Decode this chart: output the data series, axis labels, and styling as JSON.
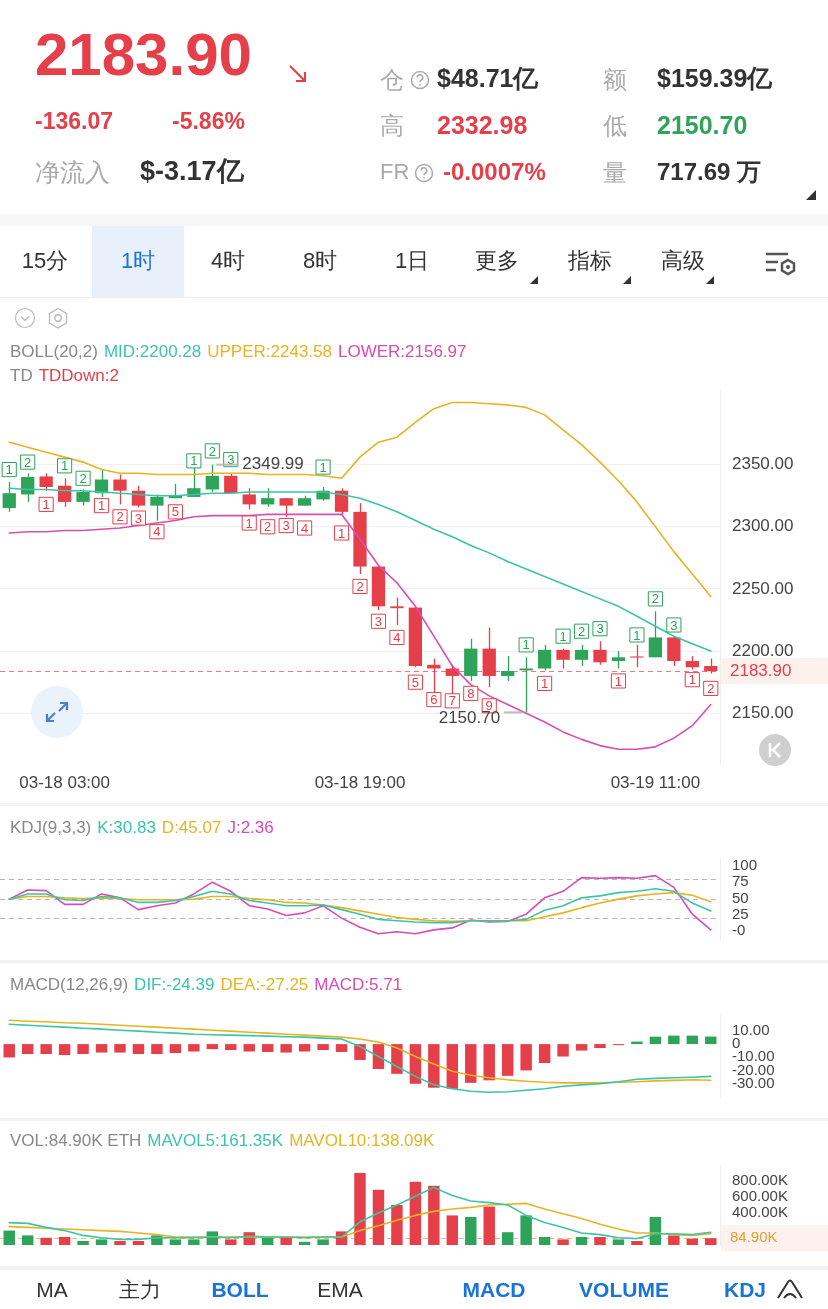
{
  "chart_data": [
    {
      "type": "other",
      "annotations": [
        "2183.90",
        "-136.07",
        "-5.86%",
        "净流入",
        "$-3.17亿",
        "仓",
        "$48.71亿",
        "额",
        "$159.39亿",
        "高",
        "2332.98",
        "低",
        "2150.70",
        "FR",
        "-0.0007%",
        "量",
        "717.69 万"
      ]
    },
    {
      "type": "other",
      "annotations": [
        "15分",
        "1时",
        "4时",
        "8时",
        "1日",
        "更多",
        "指标",
        "高级"
      ]
    },
    {
      "type": "candlestick",
      "legend": "top",
      "legend_title": "BOLL(20,2)",
      "grid": "y",
      "categories": [
        null,
        null,
        null,
        "03-18 03:00",
        null,
        null,
        null,
        null,
        null,
        null,
        null,
        null,
        null,
        null,
        null,
        null,
        null,
        null,
        null,
        "03-18 19:00",
        null,
        null,
        null,
        null,
        null,
        null,
        null,
        null,
        null,
        null,
        null,
        null,
        null,
        null,
        null,
        "03-19 11:00",
        null,
        null,
        null
      ],
      "ohlc": [
        [
          2315,
          2336,
          2312,
          2327
        ],
        [
          2326,
          2343,
          2320,
          2340
        ],
        [
          2340.5,
          2343,
          2329,
          2332
        ],
        [
          2333,
          2339,
          2316,
          2320
        ],
        [
          2320,
          2330,
          2317,
          2328
        ],
        [
          2327,
          2346,
          2324,
          2338
        ],
        [
          2338,
          2342,
          2318,
          2329
        ],
        [
          2329,
          2333,
          2315.5,
          2317
        ],
        [
          2317,
          2326,
          2305,
          2324
        ],
        [
          2323,
          2334.5,
          2323,
          2325
        ],
        [
          2324,
          2348,
          2324,
          2331
        ],
        [
          2330,
          2349.99,
          2328,
          2341
        ],
        [
          2341,
          2343,
          2327,
          2327
        ],
        [
          2326,
          2331,
          2314,
          2318
        ],
        [
          2318,
          2331,
          2316,
          2323
        ],
        [
          2323,
          2323,
          2308,
          2317
        ],
        [
          2317,
          2325,
          2317,
          2323
        ],
        [
          2322,
          2332,
          2321,
          2329
        ],
        [
          2329,
          2331,
          2309.5,
          2312
        ],
        [
          2312,
          2319,
          2262,
          2268
        ],
        [
          2268,
          2268,
          2233,
          2236
        ],
        [
          2236,
          2243,
          2221,
          2234.5
        ],
        [
          2235,
          2236,
          2187,
          2188
        ],
        [
          2189,
          2194,
          2159.5,
          2186
        ],
        [
          2186,
          2189,
          2157,
          2180
        ],
        [
          2180,
          2210,
          2176,
          2202
        ],
        [
          2202,
          2219,
          2171,
          2180
        ],
        [
          2180,
          2196,
          2176,
          2184
        ],
        [
          2184.5,
          2195,
          2150.7,
          2186
        ],
        [
          2186,
          2205,
          2184.5,
          2201
        ],
        [
          2201,
          2202,
          2186,
          2193
        ],
        [
          2193,
          2205,
          2188,
          2201
        ],
        [
          2201,
          2208,
          2189,
          2191
        ],
        [
          2192,
          2200,
          2186,
          2195
        ],
        [
          2195.7,
          2205,
          2187,
          2194.8
        ],
        [
          2195,
          2232,
          2195,
          2211
        ],
        [
          2211,
          2212,
          2188,
          2192
        ],
        [
          2192,
          2196,
          2185,
          2187
        ],
        [
          2188,
          2194,
          2182,
          2183.9
        ]
      ],
      "colors": [
        "#2ea35a",
        "#2ea35a",
        "#e5404a",
        "#e5404a",
        "#2ea35a",
        "#2ea35a",
        "#e5404a",
        "#e5404a",
        "#2ea35a",
        "#2ea35a",
        "#2ea35a",
        "#2ea35a",
        "#e5404a",
        "#e5404a",
        "#2ea35a",
        "#e5404a",
        "#2ea35a",
        "#2ea35a",
        "#e5404a",
        "#e5404a",
        "#e5404a",
        "#e5404a",
        "#e5404a",
        "#e5404a",
        "#e5404a",
        "#2ea35a",
        "#e5404a",
        "#2ea35a",
        "#2ea35a",
        "#2ea35a",
        "#e5404a",
        "#2ea35a",
        "#e5404a",
        "#2ea35a",
        "#e5404a",
        "#2ea35a",
        "#e5404a",
        "#e5404a",
        "#e5404a"
      ],
      "series": [
        {
          "name": "MID:2200.28",
          "type": "line",
          "color": "#3cc4a8",
          "values": [
            2331,
            2330,
            2330,
            2329,
            2329,
            2328,
            2327,
            2326,
            2325,
            2325,
            2326,
            2327,
            2327,
            2328,
            2328,
            2328,
            2328,
            2328,
            2326,
            2323,
            2318,
            2312,
            2305,
            2298,
            2292,
            2285,
            2279,
            2272,
            2266,
            2260,
            2254,
            2248,
            2242,
            2236,
            2228,
            2220,
            2212,
            2206,
            2200
          ]
        },
        {
          "name": "UPPER:2243.58",
          "type": "line",
          "color": "#e6b422",
          "values": [
            2368,
            2364,
            2360,
            2356,
            2352,
            2346,
            2343,
            2343,
            2342,
            2342,
            2342,
            2343,
            2343,
            2343,
            2342,
            2342,
            2342,
            2341,
            2339,
            2356,
            2368,
            2372,
            2384,
            2395,
            2400,
            2400,
            2399,
            2398,
            2396,
            2390,
            2378,
            2366,
            2352,
            2337,
            2320,
            2300,
            2280,
            2262,
            2244
          ]
        },
        {
          "name": "LOWER:2156.97",
          "type": "line",
          "color": "#d94cb5",
          "values": [
            2295,
            2296,
            2296,
            2297,
            2297,
            2298,
            2299,
            2301,
            2303,
            2305,
            2308,
            2309,
            2309,
            2309,
            2310,
            2310,
            2310,
            2310,
            2310,
            2290,
            2269,
            2255,
            2236,
            2212,
            2188,
            2173,
            2164,
            2157,
            2150,
            2143,
            2135,
            2129,
            2124,
            2121,
            2121,
            2123,
            2130,
            2140,
            2157
          ]
        },
        {
          "type": "scatter",
          "marker": "square",
          "color": "#2ea35a",
          "values": [
            2346,
            2352,
            null,
            2349,
            2339,
            null,
            null,
            null,
            null,
            null,
            2353,
            2361,
            2354,
            null,
            null,
            null,
            null,
            2348,
            null,
            null,
            null,
            null,
            null,
            null,
            null,
            null,
            null,
            null,
            2205,
            null,
            2212,
            2216,
            2218,
            null,
            2213,
            2242,
            2221,
            null,
            null
          ]
        },
        {
          "type": "scatter",
          "marker": "square",
          "color": "#e5404a",
          "values": [
            null,
            null,
            2318,
            null,
            null,
            2317,
            2308,
            2307,
            2296,
            2312,
            null,
            null,
            null,
            2303,
            2300,
            2301,
            2299,
            null,
            2295,
            2252,
            2224,
            2211,
            2175,
            2161,
            2160,
            2166,
            2156,
            null,
            null,
            2174,
            null,
            null,
            null,
            2176,
            null,
            null,
            null,
            2177,
            2170
          ]
        }
      ],
      "annotations": [
        "TD",
        "TDDown:2",
        "2349.99",
        "2150.70",
        {
          "text": "1",
          "y": 2346
        },
        {
          "text": "2",
          "y": 2352
        },
        {
          "text": "1",
          "y": 2349
        },
        {
          "text": "2",
          "y": 2339
        },
        {
          "text": "1",
          "y": 2353
        },
        {
          "text": "2",
          "y": 2361
        },
        {
          "text": "3",
          "y": 2354
        },
        {
          "text": "1",
          "y": 2348
        },
        {
          "text": "1",
          "y": 2205
        },
        {
          "text": "1",
          "y": 2212
        },
        {
          "text": "2",
          "y": 2216
        },
        {
          "text": "3",
          "y": 2218
        },
        {
          "text": "1",
          "y": 2213
        },
        {
          "text": "2",
          "y": 2242
        },
        {
          "text": "3",
          "y": 2221
        },
        {
          "text": "1",
          "y": 2318
        },
        {
          "text": "1",
          "y": 2317
        },
        {
          "text": "2",
          "y": 2308
        },
        {
          "text": "3",
          "y": 2307
        },
        {
          "text": "4",
          "y": 2296
        },
        {
          "text": "5",
          "y": 2312
        },
        {
          "text": "1",
          "y": 2303
        },
        {
          "text": "2",
          "y": 2300
        },
        {
          "text": "3",
          "y": 2301
        },
        {
          "text": "4",
          "y": 2299
        },
        {
          "text": "1",
          "y": 2295
        },
        {
          "text": "2",
          "y": 2252
        },
        {
          "text": "3",
          "y": 2224
        },
        {
          "text": "4",
          "y": 2211
        },
        {
          "text": "5",
          "y": 2175
        },
        {
          "text": "6",
          "y": 2161
        },
        {
          "text": "7",
          "y": 2160
        },
        {
          "text": "8",
          "y": 2166
        },
        {
          "text": "9",
          "y": 2156
        },
        {
          "text": "1",
          "y": 2174
        },
        {
          "text": "1",
          "y": 2176
        },
        {
          "text": "1",
          "y": 2177
        },
        {
          "text": "2",
          "y": 2170
        }
      ],
      "ref_lines": [
        {
          "axis": "y",
          "value": 2183.9,
          "label": "2183.90",
          "color": "#e5404a",
          "line_style": "dashed"
        }
      ],
      "ylim": [
        2110,
        2410
      ],
      "yticks": [
        {
          "value": 2150,
          "label": "2150.00"
        },
        {
          "value": 2200,
          "label": "2200.00"
        },
        {
          "value": 2250,
          "label": "2250.00"
        },
        {
          "value": 2300,
          "label": "2300.00"
        },
        {
          "value": 2350,
          "label": "2350.00"
        }
      ]
    },
    {
      "type": "line",
      "legend": "top",
      "legend_title": "KDJ(9,3,3)",
      "tick_labels": "y",
      "categories": [
        null,
        null,
        null,
        null,
        null,
        null,
        null,
        null,
        null,
        null,
        null,
        null,
        null,
        null,
        null,
        null,
        null,
        null,
        null,
        null,
        null,
        null,
        null,
        null,
        null,
        null,
        null,
        null,
        null,
        null,
        null,
        null,
        null,
        null,
        null,
        null,
        null,
        null,
        null
      ],
      "series": [
        {
          "name": "K:30.83",
          "color": "#3cc4a8",
          "values": [
            49,
            57,
            57,
            48,
            47,
            53,
            51,
            44,
            44,
            47,
            53,
            61,
            57,
            47,
            43,
            39,
            39,
            40,
            33,
            26,
            18,
            16,
            14,
            13,
            13,
            16,
            16,
            16,
            18,
            32,
            39,
            51,
            54,
            59,
            61,
            65,
            61,
            43,
            31
          ]
        },
        {
          "name": "D:45.07",
          "color": "#e6b422",
          "values": [
            49,
            53,
            53,
            51,
            50,
            51,
            50,
            48,
            48,
            48,
            49,
            53,
            53,
            50,
            48,
            44,
            43,
            40,
            36,
            31,
            26,
            21,
            18,
            16,
            15,
            16,
            16,
            16,
            16,
            22,
            28,
            36,
            43,
            49,
            54,
            57,
            59,
            55,
            45
          ]
        },
        {
          "name": "J:2.36",
          "color": "#d94cb5",
          "values": [
            49,
            63,
            62,
            41,
            41,
            57,
            51,
            33,
            39,
            43,
            57,
            75,
            61,
            39,
            34,
            24,
            28,
            39,
            20,
            6,
            -4,
            -1,
            -4,
            2,
            5,
            17,
            14,
            15,
            26,
            51,
            61,
            82,
            81,
            82,
            81,
            85,
            67,
            26,
            2
          ]
        }
      ],
      "ref_lines": [
        {
          "axis": "y",
          "value": 80,
          "color": "#999999",
          "line_style": "dashed"
        },
        {
          "axis": "y",
          "value": 50,
          "color": "#999999",
          "line_style": "dashed"
        },
        {
          "axis": "y",
          "value": 20,
          "color": "#999999",
          "line_style": "dashed"
        }
      ],
      "ylim": [
        -12,
        112
      ],
      "yticks": [
        100,
        75,
        50,
        25,
        {
          "value": 0,
          "label": "-0"
        }
      ]
    },
    {
      "type": "bar",
      "legend": "top",
      "legend_title": "MACD(12,26,9)",
      "tick_labels": "y",
      "categories": [
        null,
        null,
        null,
        null,
        null,
        null,
        null,
        null,
        null,
        null,
        null,
        null,
        null,
        null,
        null,
        null,
        null,
        null,
        null,
        null,
        null,
        null,
        null,
        null,
        null,
        null,
        null,
        null,
        null,
        null,
        null,
        null,
        null,
        null,
        null,
        null,
        null,
        null,
        null
      ],
      "values": [
        -10.1,
        -7.5,
        -7.5,
        -8.3,
        -7.5,
        -6.4,
        -6.4,
        -7.5,
        -7.5,
        -6.8,
        -5.6,
        -3.8,
        -4.5,
        -5.6,
        -6,
        -6.4,
        -5.6,
        -4.5,
        -6,
        -12,
        -18.8,
        -22.5,
        -30,
        -33,
        -33.8,
        -29.3,
        -27.4,
        -24,
        -19.9,
        -14.3,
        -9.4,
        -4.9,
        -3,
        -0.8,
        1.9,
        5.6,
        6.4,
        6.4,
        5.7
      ],
      "colors": [
        "#e5404a",
        "#e5404a",
        "#e5404a",
        "#e5404a",
        "#e5404a",
        "#e5404a",
        "#e5404a",
        "#e5404a",
        "#e5404a",
        "#e5404a",
        "#e5404a",
        "#e5404a",
        "#e5404a",
        "#e5404a",
        "#e5404a",
        "#e5404a",
        "#e5404a",
        "#e5404a",
        "#e5404a",
        "#e5404a",
        "#e5404a",
        "#e5404a",
        "#e5404a",
        "#e5404a",
        "#e5404a",
        "#e5404a",
        "#e5404a",
        "#e5404a",
        "#e5404a",
        "#e5404a",
        "#e5404a",
        "#e5404a",
        "#e5404a",
        "#e5404a",
        "#2ea35a",
        "#2ea35a",
        "#2ea35a",
        "#2ea35a",
        "#2ea35a"
      ],
      "series": [
        {
          "name": "DIF:-24.39",
          "type": "line",
          "color": "#3cc4a8",
          "values": [
            15,
            14.3,
            13.5,
            12.8,
            12,
            11.3,
            10.5,
            9.8,
            9,
            8.3,
            7.5,
            7.1,
            6.8,
            6.4,
            6,
            5.6,
            5.3,
            4.5,
            3.8,
            -1.9,
            -9.4,
            -16.9,
            -24.4,
            -30.8,
            -33.8,
            -35.6,
            -36.4,
            -36,
            -34.9,
            -33.8,
            -31.9,
            -30.8,
            -30,
            -28.5,
            -26.6,
            -25.9,
            -25.5,
            -25.1,
            -24.4
          ]
        },
        {
          "name": "DEA:-27.25",
          "type": "line",
          "color": "#e6b422",
          "values": [
            18,
            17.3,
            16.9,
            16.1,
            15.8,
            15,
            14.3,
            13.5,
            12.8,
            12,
            11.3,
            10.5,
            9.8,
            9,
            8.3,
            7.5,
            6.8,
            6,
            5.3,
            3.8,
            1.5,
            -3,
            -9.4,
            -15,
            -20.6,
            -23.6,
            -25.5,
            -27,
            -28.1,
            -28.9,
            -29.3,
            -29.3,
            -29.3,
            -28.9,
            -28.5,
            -27.8,
            -27.4,
            -27,
            -27.3
          ]
        }
      ],
      "annotations": [
        "MACD:5.71"
      ],
      "ylim": [
        -40,
        22
      ],
      "yticks": [
        {
          "value": 10,
          "label": "10.00"
        },
        0,
        {
          "value": -10,
          "label": "-10.00"
        },
        {
          "value": -20,
          "label": "-20.00"
        },
        {
          "value": -30,
          "label": "-30.00"
        }
      ]
    },
    {
      "type": "bar",
      "legend": "top",
      "legend_title": "VOL:84.90K ETH",
      "tick_labels": "y",
      "categories": [
        null,
        null,
        null,
        null,
        null,
        null,
        null,
        null,
        null,
        null,
        null,
        null,
        null,
        null,
        null,
        null,
        null,
        null,
        null,
        null,
        null,
        null,
        null,
        null,
        null,
        null,
        null,
        null,
        null,
        null,
        null,
        null,
        null,
        null,
        null,
        null,
        null,
        null,
        null
      ],
      "values": [
        180000,
        120000,
        90000,
        100000,
        50000,
        70000,
        50000,
        50000,
        120000,
        70000,
        70000,
        170000,
        70000,
        160000,
        90000,
        100000,
        40000,
        70000,
        170000,
        900000,
        690000,
        500000,
        790000,
        740000,
        370000,
        350000,
        480000,
        160000,
        370000,
        100000,
        70000,
        100000,
        100000,
        70000,
        50000,
        350000,
        120000,
        80000,
        85000
      ],
      "colors": [
        "#2ea35a",
        "#2ea35a",
        "#e5404a",
        "#e5404a",
        "#2ea35a",
        "#2ea35a",
        "#e5404a",
        "#e5404a",
        "#2ea35a",
        "#2ea35a",
        "#2ea35a",
        "#2ea35a",
        "#e5404a",
        "#e5404a",
        "#2ea35a",
        "#e5404a",
        "#2ea35a",
        "#2ea35a",
        "#e5404a",
        "#e5404a",
        "#e5404a",
        "#e5404a",
        "#e5404a",
        "#e5404a",
        "#e5404a",
        "#2ea35a",
        "#e5404a",
        "#2ea35a",
        "#2ea35a",
        "#2ea35a",
        "#e5404a",
        "#2ea35a",
        "#e5404a",
        "#2ea35a",
        "#e5404a",
        "#2ea35a",
        "#e5404a",
        "#e5404a",
        "#e5404a"
      ],
      "series": [
        {
          "name": "MAVOL5:161.35K",
          "type": "line",
          "color": "#3cc4a8",
          "values": [
            280000,
            270000,
            220000,
            180000,
            120000,
            90000,
            70000,
            70000,
            90000,
            90000,
            90000,
            100000,
            90000,
            110000,
            100000,
            100000,
            90000,
            100000,
            100000,
            290000,
            400000,
            500000,
            610000,
            720000,
            620000,
            550000,
            530000,
            500000,
            370000,
            280000,
            220000,
            150000,
            130000,
            90000,
            80000,
            140000,
            140000,
            130000,
            160000
          ]
        },
        {
          "name": "MAVOL10:138.09K",
          "type": "line",
          "color": "#e6b422",
          "values": [
            230000,
            220000,
            210000,
            200000,
            190000,
            180000,
            170000,
            150000,
            130000,
            100000,
            100000,
            100000,
            100000,
            100000,
            100000,
            100000,
            100000,
            100000,
            100000,
            180000,
            240000,
            310000,
            370000,
            420000,
            450000,
            470000,
            500000,
            510000,
            520000,
            450000,
            390000,
            330000,
            260000,
            200000,
            150000,
            150000,
            130000,
            120000,
            140000
          ]
        }
      ],
      "ref_lines": [
        {
          "axis": "y",
          "value": 85000,
          "label": "84.90K",
          "color": "#e0a030",
          "line_style": "dashed"
        }
      ],
      "ylim": [
        0,
        1000000
      ],
      "yticks": [
        {
          "value": 400000,
          "label": "400.00K"
        },
        {
          "value": 600000,
          "label": "600.00K"
        },
        {
          "value": 800000,
          "label": "800.00K"
        }
      ]
    },
    {
      "type": "other",
      "annotations": [
        "MA",
        "主力",
        "BOLL",
        "EMA",
        "MACD",
        "VOLUME",
        "KDJ"
      ]
    }
  ]
}
